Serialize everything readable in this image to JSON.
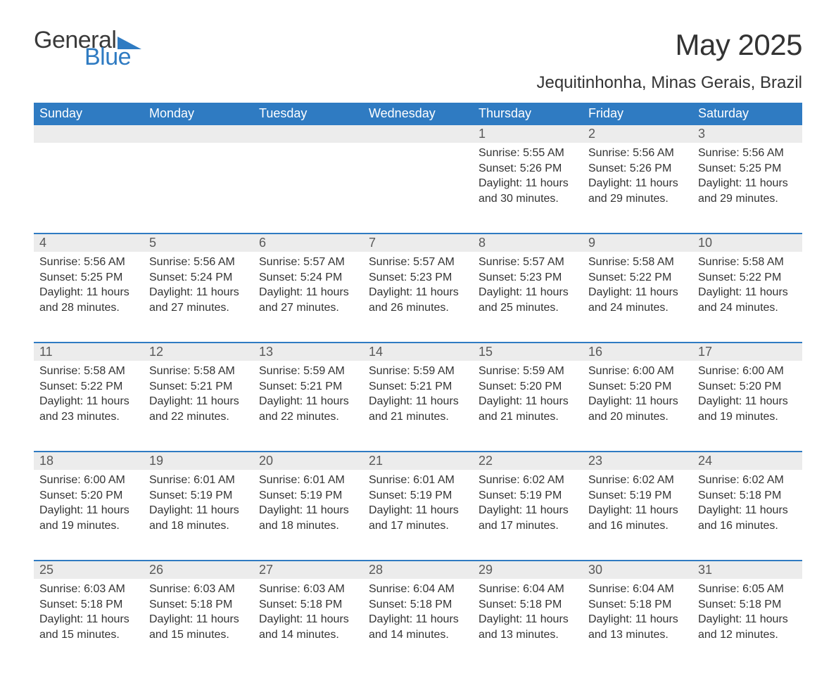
{
  "logo": {
    "word1": "General",
    "word2": "Blue",
    "text_color": "#3a3a3a",
    "accent_color": "#2f7bc2"
  },
  "title": "May 2025",
  "location": "Jequitinhonha, Minas Gerais, Brazil",
  "colors": {
    "header_bg": "#2f7bc2",
    "header_text": "#ffffff",
    "daynum_bg": "#ececec",
    "daynum_text": "#595959",
    "row_divider": "#2f7bc2",
    "body_text": "#333333",
    "page_bg": "#ffffff"
  },
  "typography": {
    "title_fontsize": 42,
    "location_fontsize": 24,
    "header_fontsize": 18,
    "daynum_fontsize": 18,
    "body_fontsize": 16,
    "font_family": "Arial"
  },
  "calendar": {
    "type": "table",
    "columns": [
      "Sunday",
      "Monday",
      "Tuesday",
      "Wednesday",
      "Thursday",
      "Friday",
      "Saturday"
    ],
    "weeks": [
      [
        null,
        null,
        null,
        null,
        {
          "day": "1",
          "sunrise": "Sunrise: 5:55 AM",
          "sunset": "Sunset: 5:26 PM",
          "daylight": "Daylight: 11 hours and 30 minutes."
        },
        {
          "day": "2",
          "sunrise": "Sunrise: 5:56 AM",
          "sunset": "Sunset: 5:26 PM",
          "daylight": "Daylight: 11 hours and 29 minutes."
        },
        {
          "day": "3",
          "sunrise": "Sunrise: 5:56 AM",
          "sunset": "Sunset: 5:25 PM",
          "daylight": "Daylight: 11 hours and 29 minutes."
        }
      ],
      [
        {
          "day": "4",
          "sunrise": "Sunrise: 5:56 AM",
          "sunset": "Sunset: 5:25 PM",
          "daylight": "Daylight: 11 hours and 28 minutes."
        },
        {
          "day": "5",
          "sunrise": "Sunrise: 5:56 AM",
          "sunset": "Sunset: 5:24 PM",
          "daylight": "Daylight: 11 hours and 27 minutes."
        },
        {
          "day": "6",
          "sunrise": "Sunrise: 5:57 AM",
          "sunset": "Sunset: 5:24 PM",
          "daylight": "Daylight: 11 hours and 27 minutes."
        },
        {
          "day": "7",
          "sunrise": "Sunrise: 5:57 AM",
          "sunset": "Sunset: 5:23 PM",
          "daylight": "Daylight: 11 hours and 26 minutes."
        },
        {
          "day": "8",
          "sunrise": "Sunrise: 5:57 AM",
          "sunset": "Sunset: 5:23 PM",
          "daylight": "Daylight: 11 hours and 25 minutes."
        },
        {
          "day": "9",
          "sunrise": "Sunrise: 5:58 AM",
          "sunset": "Sunset: 5:22 PM",
          "daylight": "Daylight: 11 hours and 24 minutes."
        },
        {
          "day": "10",
          "sunrise": "Sunrise: 5:58 AM",
          "sunset": "Sunset: 5:22 PM",
          "daylight": "Daylight: 11 hours and 24 minutes."
        }
      ],
      [
        {
          "day": "11",
          "sunrise": "Sunrise: 5:58 AM",
          "sunset": "Sunset: 5:22 PM",
          "daylight": "Daylight: 11 hours and 23 minutes."
        },
        {
          "day": "12",
          "sunrise": "Sunrise: 5:58 AM",
          "sunset": "Sunset: 5:21 PM",
          "daylight": "Daylight: 11 hours and 22 minutes."
        },
        {
          "day": "13",
          "sunrise": "Sunrise: 5:59 AM",
          "sunset": "Sunset: 5:21 PM",
          "daylight": "Daylight: 11 hours and 22 minutes."
        },
        {
          "day": "14",
          "sunrise": "Sunrise: 5:59 AM",
          "sunset": "Sunset: 5:21 PM",
          "daylight": "Daylight: 11 hours and 21 minutes."
        },
        {
          "day": "15",
          "sunrise": "Sunrise: 5:59 AM",
          "sunset": "Sunset: 5:20 PM",
          "daylight": "Daylight: 11 hours and 21 minutes."
        },
        {
          "day": "16",
          "sunrise": "Sunrise: 6:00 AM",
          "sunset": "Sunset: 5:20 PM",
          "daylight": "Daylight: 11 hours and 20 minutes."
        },
        {
          "day": "17",
          "sunrise": "Sunrise: 6:00 AM",
          "sunset": "Sunset: 5:20 PM",
          "daylight": "Daylight: 11 hours and 19 minutes."
        }
      ],
      [
        {
          "day": "18",
          "sunrise": "Sunrise: 6:00 AM",
          "sunset": "Sunset: 5:20 PM",
          "daylight": "Daylight: 11 hours and 19 minutes."
        },
        {
          "day": "19",
          "sunrise": "Sunrise: 6:01 AM",
          "sunset": "Sunset: 5:19 PM",
          "daylight": "Daylight: 11 hours and 18 minutes."
        },
        {
          "day": "20",
          "sunrise": "Sunrise: 6:01 AM",
          "sunset": "Sunset: 5:19 PM",
          "daylight": "Daylight: 11 hours and 18 minutes."
        },
        {
          "day": "21",
          "sunrise": "Sunrise: 6:01 AM",
          "sunset": "Sunset: 5:19 PM",
          "daylight": "Daylight: 11 hours and 17 minutes."
        },
        {
          "day": "22",
          "sunrise": "Sunrise: 6:02 AM",
          "sunset": "Sunset: 5:19 PM",
          "daylight": "Daylight: 11 hours and 17 minutes."
        },
        {
          "day": "23",
          "sunrise": "Sunrise: 6:02 AM",
          "sunset": "Sunset: 5:19 PM",
          "daylight": "Daylight: 11 hours and 16 minutes."
        },
        {
          "day": "24",
          "sunrise": "Sunrise: 6:02 AM",
          "sunset": "Sunset: 5:18 PM",
          "daylight": "Daylight: 11 hours and 16 minutes."
        }
      ],
      [
        {
          "day": "25",
          "sunrise": "Sunrise: 6:03 AM",
          "sunset": "Sunset: 5:18 PM",
          "daylight": "Daylight: 11 hours and 15 minutes."
        },
        {
          "day": "26",
          "sunrise": "Sunrise: 6:03 AM",
          "sunset": "Sunset: 5:18 PM",
          "daylight": "Daylight: 11 hours and 15 minutes."
        },
        {
          "day": "27",
          "sunrise": "Sunrise: 6:03 AM",
          "sunset": "Sunset: 5:18 PM",
          "daylight": "Daylight: 11 hours and 14 minutes."
        },
        {
          "day": "28",
          "sunrise": "Sunrise: 6:04 AM",
          "sunset": "Sunset: 5:18 PM",
          "daylight": "Daylight: 11 hours and 14 minutes."
        },
        {
          "day": "29",
          "sunrise": "Sunrise: 6:04 AM",
          "sunset": "Sunset: 5:18 PM",
          "daylight": "Daylight: 11 hours and 13 minutes."
        },
        {
          "day": "30",
          "sunrise": "Sunrise: 6:04 AM",
          "sunset": "Sunset: 5:18 PM",
          "daylight": "Daylight: 11 hours and 13 minutes."
        },
        {
          "day": "31",
          "sunrise": "Sunrise: 6:05 AM",
          "sunset": "Sunset: 5:18 PM",
          "daylight": "Daylight: 11 hours and 12 minutes."
        }
      ]
    ]
  }
}
